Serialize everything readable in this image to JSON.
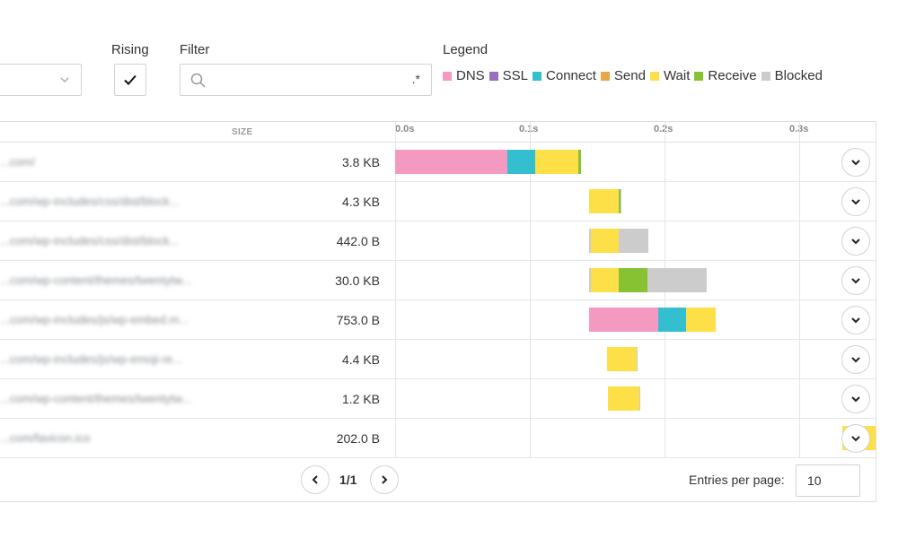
{
  "controls": {
    "rising_label": "Rising",
    "rising_checked": true,
    "filter_label": "Filter",
    "filter_value": "",
    "regex_label": ".*"
  },
  "legend": {
    "title": "Legend",
    "items": [
      {
        "label": "DNS",
        "color": "#f49ac1"
      },
      {
        "label": "SSL",
        "color": "#9b6fc0"
      },
      {
        "label": "Connect",
        "color": "#33bfcf"
      },
      {
        "label": "Send",
        "color": "#e8a847"
      },
      {
        "label": "Wait",
        "color": "#fde047"
      },
      {
        "label": "Receive",
        "color": "#86c232"
      },
      {
        "label": "Blocked",
        "color": "#cccccc"
      }
    ]
  },
  "table": {
    "size_header": "SIZE",
    "timeline_ticks": [
      "0.0s",
      "0.1s",
      "0.2s",
      "0.3s"
    ],
    "rows": [
      {
        "url": "...com/",
        "size": "3.8 KB",
        "timing": {
          "start": 0.0,
          "dns": 0.083,
          "connect": 0.021,
          "wait": 0.032,
          "receive": 0.002
        }
      },
      {
        "url": "...com/wp-includes/css/dist/block...",
        "size": "4.3 KB",
        "timing": {
          "start": 0.144,
          "blocked": 0.001,
          "wait": 0.022,
          "receive": 0.001
        }
      },
      {
        "url": "...com/wp-includes/css/dist/block...",
        "size": "442.0 B",
        "timing": {
          "start": 0.144,
          "blocked_pre": 0.001,
          "wait": 0.021,
          "blocked": 0.022
        }
      },
      {
        "url": "...com/wp-content/themes/twentytw...",
        "size": "30.0 KB",
        "timing": {
          "start": 0.144,
          "blocked_pre": 0.001,
          "wait": 0.021,
          "receive": 0.021,
          "blocked": 0.044
        }
      },
      {
        "url": "...com/wp-includes/js/wp-embed.m...",
        "size": "753.0 B",
        "timing": {
          "start": 0.144,
          "dns": 0.051,
          "connect": 0.021,
          "wait": 0.022
        }
      },
      {
        "url": "...com/wp-includes/js/wp-emoji-re...",
        "size": "4.4 KB",
        "timing": {
          "start": 0.157,
          "blocked": 0.001,
          "wait": 0.022
        }
      },
      {
        "url": "...com/wp-content/themes/twentytw...",
        "size": "1.2 KB",
        "timing": {
          "start": 0.158,
          "blocked": 0.001,
          "wait": 0.023
        }
      },
      {
        "url": "...com/favicon.ico",
        "size": "202.0 B",
        "timing": {
          "start": 0.332,
          "blocked": 0.001,
          "wait": 0.025
        }
      }
    ]
  },
  "pagination": {
    "page_info": "1/1",
    "entries_label": "Entries per page:",
    "entries_value": "10"
  }
}
